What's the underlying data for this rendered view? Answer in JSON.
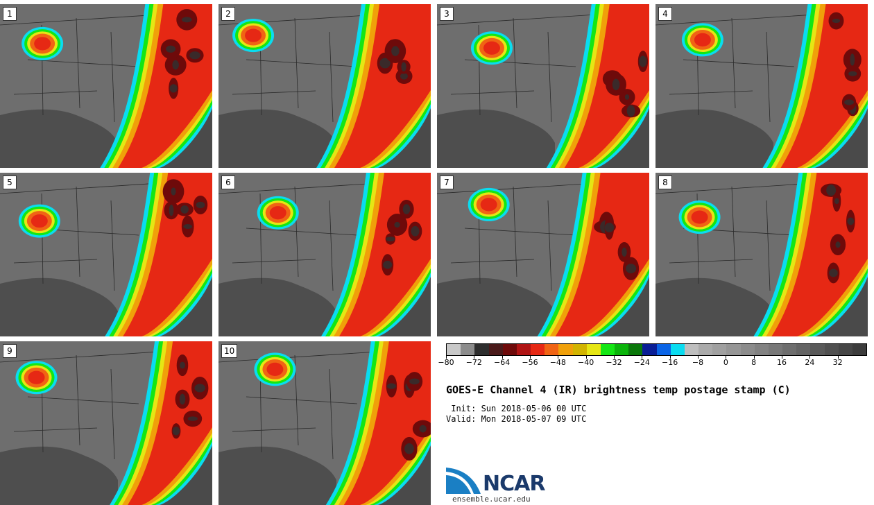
{
  "panels": [
    {
      "label": "1"
    },
    {
      "label": "2"
    },
    {
      "label": "3"
    },
    {
      "label": "4"
    },
    {
      "label": "5"
    },
    {
      "label": "6"
    },
    {
      "label": "7"
    },
    {
      "label": "8"
    },
    {
      "label": "9"
    },
    {
      "label": "10"
    }
  ],
  "colorbar": {
    "tick_labels": [
      "-80",
      "-72",
      "-64",
      "-56",
      "-48",
      "-40",
      "-32",
      "-24",
      "-16",
      "-8",
      "0",
      "8",
      "16",
      "24",
      "32"
    ],
    "tick_values": [
      -80,
      -72,
      -64,
      -56,
      -48,
      -40,
      -32,
      -24,
      -16,
      -8,
      0,
      8,
      16,
      24,
      32
    ],
    "range": [
      -80,
      40
    ],
    "colors": [
      "#c8c8c8",
      "#8c8c8c",
      "#2e2e2e",
      "#4a1a1a",
      "#6e0a0a",
      "#b01414",
      "#e62814",
      "#f06414",
      "#f0a00a",
      "#d2b400",
      "#e6e614",
      "#14e614",
      "#0ab40a",
      "#0a780a",
      "#0a1e96",
      "#0a64e6",
      "#0adcf0",
      "#bebebe",
      "#aaaaaa",
      "#a0a0a0",
      "#969696",
      "#8c8c8c",
      "#828282",
      "#787878",
      "#6e6e6e",
      "#646464",
      "#5a5a5a",
      "#505050",
      "#464646",
      "#3c3c3c"
    ]
  },
  "title": "GOES-E Channel 4 (IR) brightness temp postage stamp (C)",
  "init": " Init: Sun 2018-05-06 00 UTC",
  "valid": "Valid: Mon 2018-05-07 09 UTC",
  "logo": {
    "text": "NCAR",
    "url": "ensemble.ucar.edu"
  }
}
